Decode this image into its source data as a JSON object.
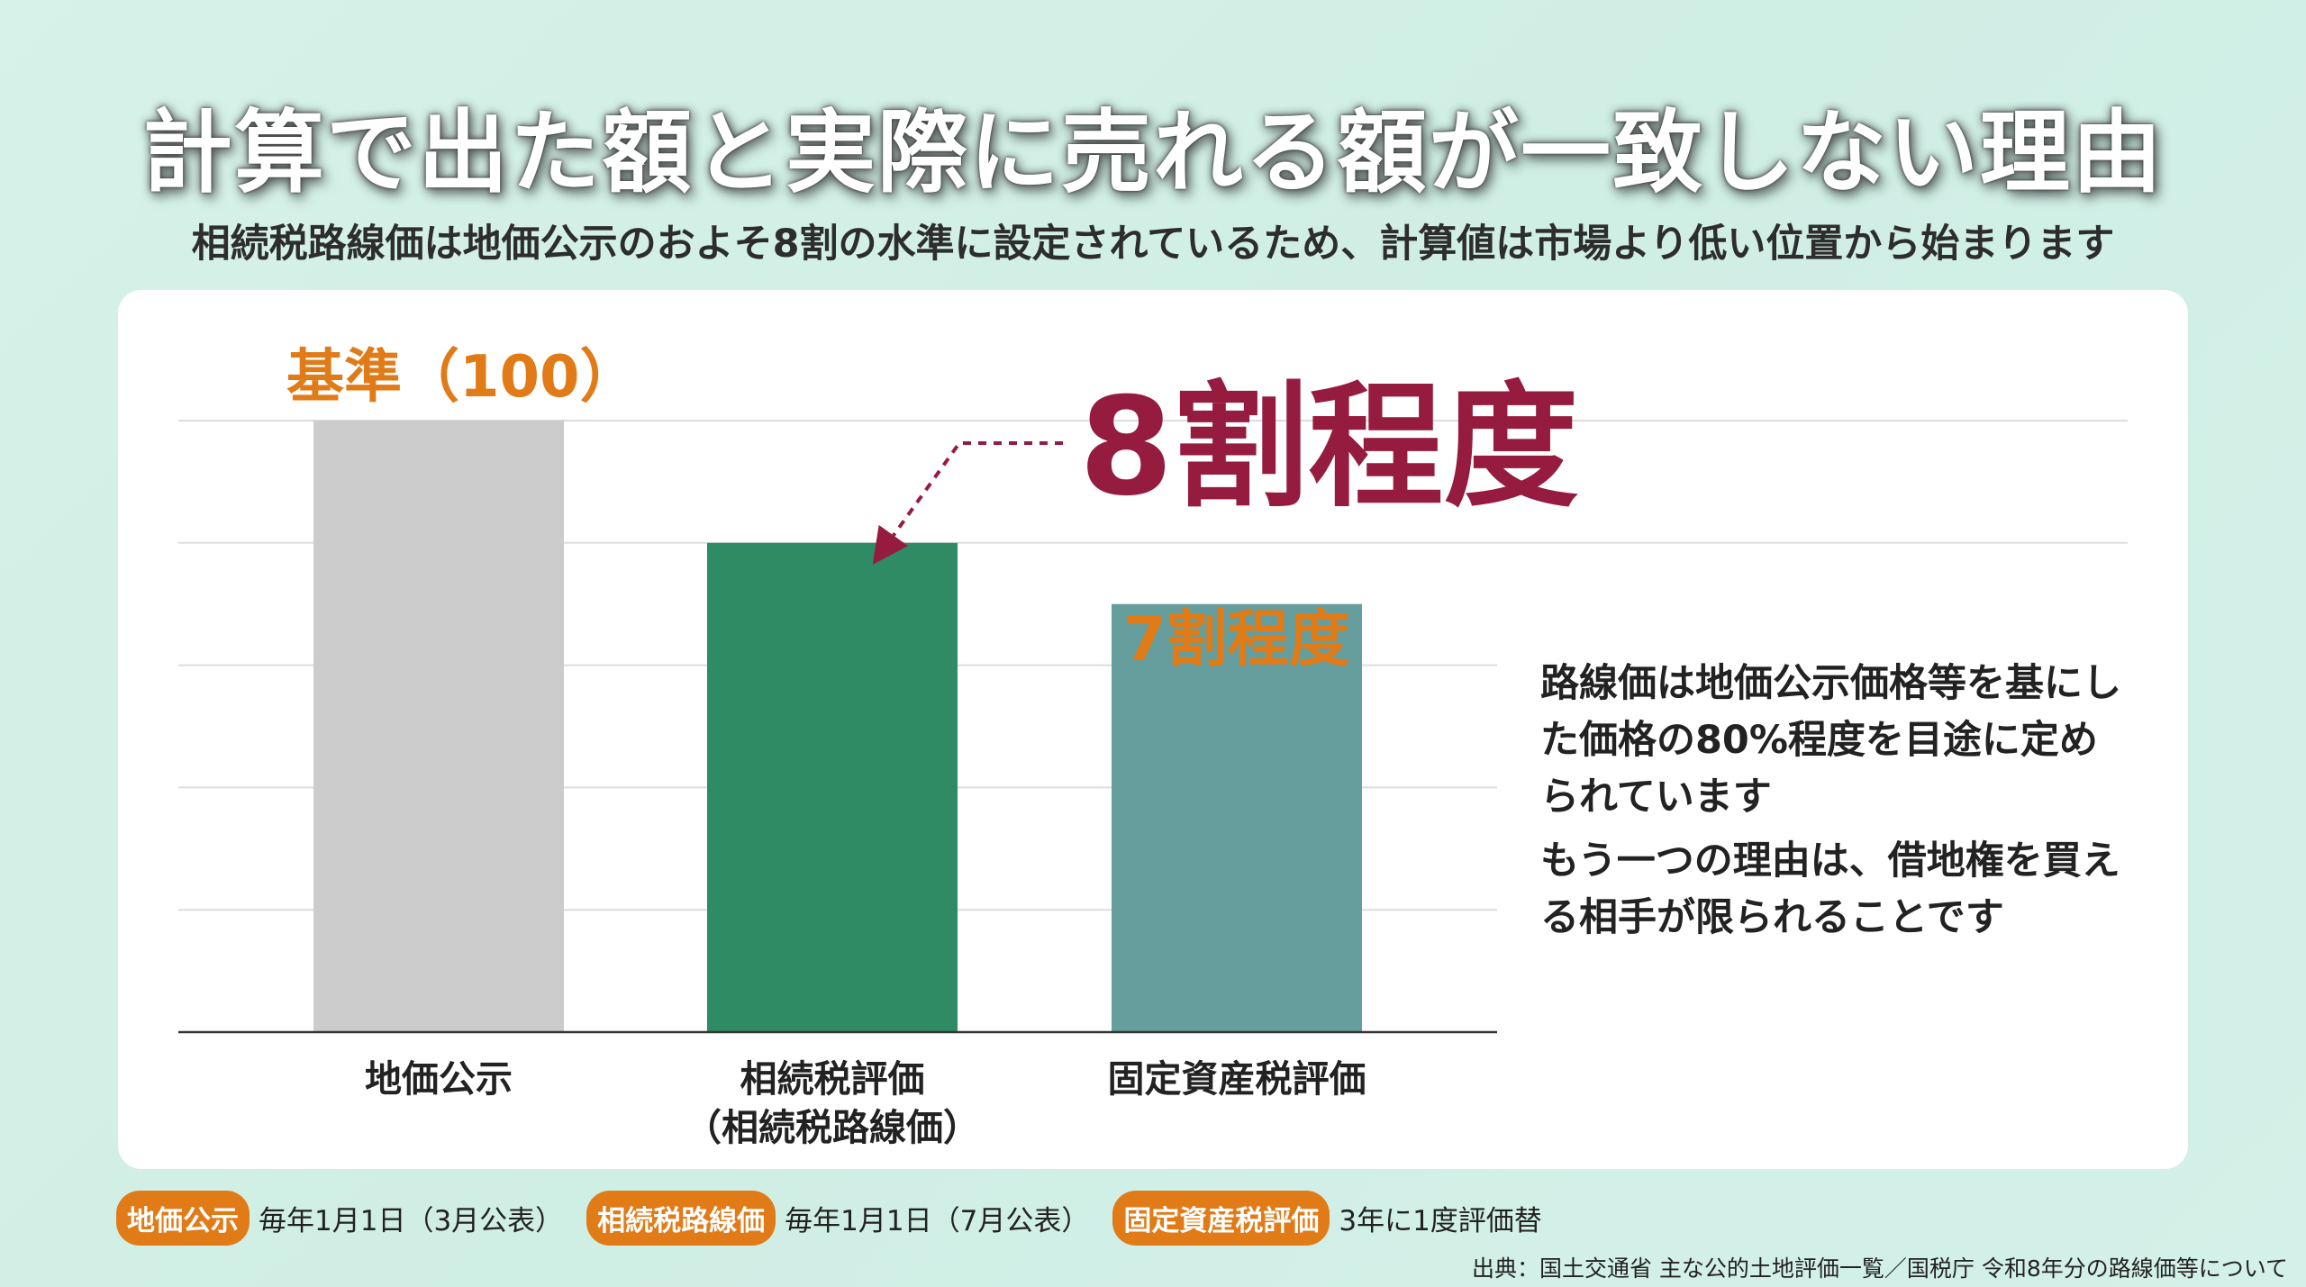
{
  "title": "計算で出た額と実際に売れる額が一致しない理由",
  "subtitle": "相続税路線価は地価公示のおよそ8割の水準に設定されているため、計算値は市場より低い位置から始まります",
  "chart_data": {
    "type": "bar",
    "categories": [
      "地価公示",
      "相続税評価\n（相続税路線価）",
      "固定資産税評価"
    ],
    "values": [
      100,
      80,
      70
    ],
    "ylim": [
      0,
      100
    ],
    "grid": true,
    "bar_labels": [
      "基準（100）",
      "8割程度",
      "7割程度"
    ],
    "colors": [
      "#cccccc",
      "#2e8b63",
      "#669e9d"
    ]
  },
  "colors": {
    "accent_orange": "#e07b18",
    "highlight": "#961c3f",
    "background": "#d2f0e6"
  },
  "callout": {
    "p1": "路線価は地価公示価格等を基にした価格の80%程度を目途に定められています",
    "p2": "もう一つの理由は、借地権を買える相手が限られることです"
  },
  "legend": [
    {
      "tag": "地価公示",
      "desc": "毎年1月1日（3月公表）"
    },
    {
      "tag": "相続税路線価",
      "desc": "毎年1月1日（7月公表）"
    },
    {
      "tag": "固定資産税評価",
      "desc": "3年に1度評価替"
    }
  ],
  "source": "出典：国土交通省 主な公的土地評価一覧／国税庁 令和8年分の路線価等について"
}
